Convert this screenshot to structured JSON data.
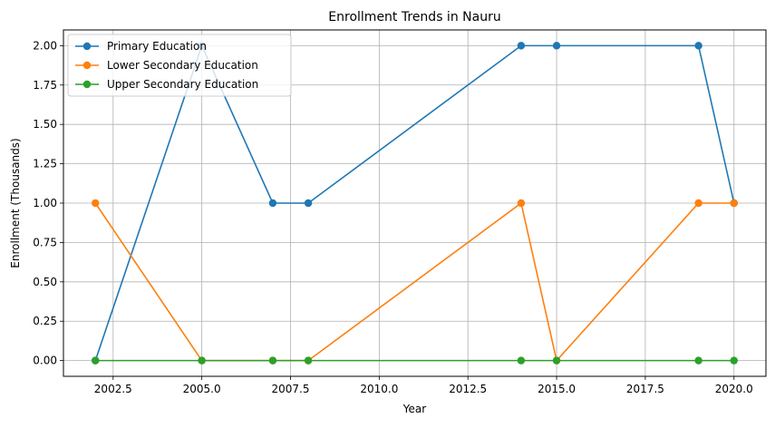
{
  "chart_data": {
    "type": "line",
    "title": "Enrollment Trends in Nauru",
    "xlabel": "Year",
    "ylabel": "Enrollment (Thousands)",
    "xlim": [
      2001.1,
      2020.9
    ],
    "ylim": [
      -0.1,
      2.1
    ],
    "xticks": [
      2002.5,
      2005.0,
      2007.5,
      2010.0,
      2012.5,
      2015.0,
      2017.5,
      2020.0
    ],
    "xtick_labels": [
      "2002.5",
      "2005.0",
      "2007.5",
      "2010.0",
      "2012.5",
      "2015.0",
      "2017.5",
      "2020.0"
    ],
    "yticks": [
      0.0,
      0.25,
      0.5,
      0.75,
      1.0,
      1.25,
      1.5,
      1.75,
      2.0
    ],
    "ytick_labels": [
      "0.00",
      "0.25",
      "0.50",
      "0.75",
      "1.00",
      "1.25",
      "1.50",
      "1.75",
      "2.00"
    ],
    "grid": true,
    "legend_position": "top-left",
    "x": [
      2002,
      2005,
      2007,
      2008,
      2014,
      2015,
      2019,
      2020
    ],
    "series": [
      {
        "name": "Primary Education",
        "color": "#1f77b4",
        "values": [
          0,
          2,
          1,
          1,
          2,
          2,
          2,
          1
        ]
      },
      {
        "name": "Lower Secondary Education",
        "color": "#ff7f0e",
        "values": [
          1,
          0,
          0,
          0,
          1,
          0,
          1,
          1
        ]
      },
      {
        "name": "Upper Secondary Education",
        "color": "#2ca02c",
        "values": [
          0,
          0,
          0,
          0,
          0,
          0,
          0,
          0
        ]
      }
    ]
  }
}
